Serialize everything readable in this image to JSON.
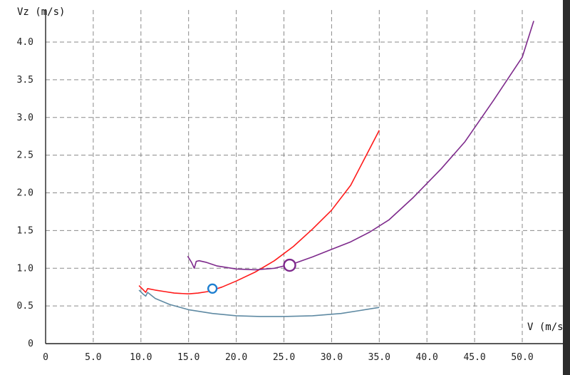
{
  "chart_data": {
    "type": "line",
    "xlabel": "V (m/s)",
    "ylabel": "Vz (m/s)",
    "xlim": [
      0,
      50
    ],
    "ylim": [
      0,
      4.3
    ],
    "grid": true,
    "x_ticks": [
      "0",
      "5.0",
      "10.0",
      "15.0",
      "20.0",
      "25.0",
      "30.0",
      "35.0",
      "40.0",
      "45.0",
      "50.0"
    ],
    "y_ticks": [
      "0",
      "0.5",
      "1.0",
      "1.5",
      "2.0",
      "2.5",
      "3.0",
      "3.5",
      "4.0"
    ],
    "x_tick_values": [
      0,
      5,
      10,
      15,
      20,
      25,
      30,
      35,
      40,
      45,
      50
    ],
    "y_tick_values": [
      0,
      0.5,
      1.0,
      1.5,
      2.0,
      2.5,
      3.0,
      3.5,
      4.0
    ],
    "series": [
      {
        "color": "#ff1a1a",
        "x": [
          9.8,
          10.2,
          10.5,
          10.7,
          11.5,
          12.5,
          13.5,
          15.0,
          16.0,
          17.0,
          18.5,
          20.0,
          22.0,
          24.0,
          26.0,
          28.0,
          30.0,
          32.0,
          35.0
        ],
        "y": [
          0.77,
          0.72,
          0.68,
          0.73,
          0.71,
          0.69,
          0.67,
          0.66,
          0.67,
          0.69,
          0.75,
          0.83,
          0.95,
          1.1,
          1.29,
          1.52,
          1.77,
          2.1,
          2.83
        ]
      },
      {
        "color": "#5f8aa3",
        "x": [
          9.8,
          10.2,
          10.5,
          10.7,
          11.5,
          13.0,
          15.0,
          17.5,
          20.0,
          22.5,
          25.0,
          28.0,
          31.0,
          33.0,
          35.0
        ],
        "y": [
          0.71,
          0.66,
          0.63,
          0.68,
          0.6,
          0.52,
          0.45,
          0.4,
          0.37,
          0.36,
          0.36,
          0.37,
          0.4,
          0.44,
          0.48
        ]
      },
      {
        "color": "#7e2a8c",
        "x": [
          14.9,
          15.3,
          15.6,
          15.8,
          16.1,
          16.8,
          18.0,
          20.0,
          22.0,
          24.0,
          26.0,
          28.0,
          30.0,
          32.0,
          34.0,
          36.0,
          38.5,
          41.5,
          44.0,
          47.0,
          50.0,
          51.2
        ],
        "y": [
          1.16,
          1.08,
          1.0,
          1.09,
          1.1,
          1.08,
          1.03,
          0.99,
          0.98,
          1.0,
          1.06,
          1.15,
          1.25,
          1.35,
          1.48,
          1.64,
          1.93,
          2.32,
          2.68,
          3.23,
          3.8,
          4.28
        ]
      }
    ],
    "markers": [
      {
        "x": 17.5,
        "y": 0.73,
        "color": "#1e7fd0",
        "style": "hollow-circle"
      },
      {
        "x": 25.6,
        "y": 1.04,
        "color": "#7e2a8c",
        "style": "hollow-circle"
      }
    ]
  }
}
